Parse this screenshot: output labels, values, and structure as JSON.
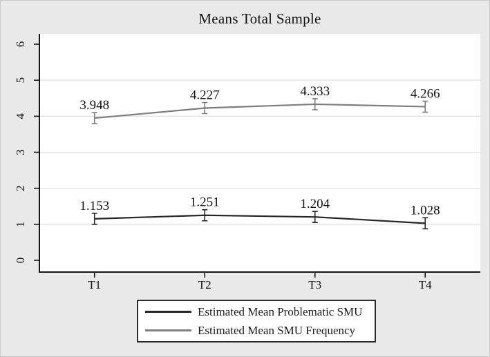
{
  "title": "Means Total Sample",
  "colors": {
    "background": "#e9e9e9",
    "figure_border": "#c9c9c9",
    "plot_bg": "#ffffff",
    "grid": "#e2e2e2",
    "axis": "#161616",
    "text": "#111111",
    "series_problematic": "#262626",
    "series_frequency": "#7d7d7d",
    "legend_border": "#2b2b2b"
  },
  "chart_data": {
    "type": "line",
    "title": "Means Total Sample",
    "categories": [
      "T1",
      "T2",
      "T3",
      "T4"
    ],
    "series": [
      {
        "name": "Estimated Mean SMU Frequency",
        "values": [
          3.948,
          4.227,
          4.333,
          4.266
        ],
        "point_labels": [
          "3.948",
          "4.227",
          "4.333",
          "4.266"
        ],
        "color_key": "series_frequency"
      },
      {
        "name": "Estimated Mean Problematic SMU",
        "values": [
          1.153,
          1.251,
          1.204,
          1.028
        ],
        "point_labels": [
          "1.153",
          "1.251",
          "1.204",
          "1.028"
        ],
        "color_key": "series_problematic"
      }
    ],
    "xlabel": "",
    "ylabel": "",
    "ylim": [
      0,
      6
    ],
    "y_ticks": [
      0,
      1,
      2,
      3,
      4,
      5,
      6
    ],
    "gridline_values": [
      1,
      2,
      3,
      4,
      5
    ],
    "grid": true,
    "error_bars": "small capped confidence-interval whiskers at each point",
    "legend_position": "bottom-center",
    "legend_order": [
      "Estimated Mean Problematic SMU",
      "Estimated Mean SMU Frequency"
    ]
  },
  "legend": {
    "items": [
      {
        "label": "Estimated Mean Problematic SMU",
        "color_key": "series_problematic"
      },
      {
        "label": "Estimated Mean SMU Frequency",
        "color_key": "series_frequency"
      }
    ]
  }
}
